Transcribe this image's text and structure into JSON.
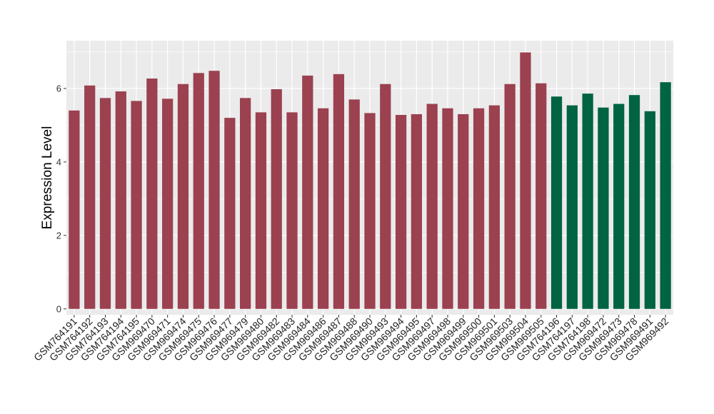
{
  "chart_data": {
    "type": "bar",
    "title": "",
    "xlabel": "",
    "ylabel": "Expression Level",
    "ylim": [
      -0.16,
      7.3
    ],
    "yticks": [
      0,
      2,
      4,
      6
    ],
    "grid": true,
    "legend": "none",
    "colors": {
      "group_a": "#9b4150",
      "group_b": "#006341",
      "panel_bg": "#ebebeb",
      "grid": "#ffffff"
    },
    "categories": [
      "GSM764191",
      "GSM764192",
      "GSM764193",
      "GSM764194",
      "GSM764195",
      "GSM969470",
      "GSM969471",
      "GSM969474",
      "GSM969475",
      "GSM969476",
      "GSM969477",
      "GSM969479",
      "GSM969480",
      "GSM969482",
      "GSM969483",
      "GSM969484",
      "GSM969486",
      "GSM969487",
      "GSM969488",
      "GSM969490",
      "GSM969493",
      "GSM969494",
      "GSM969495",
      "GSM969497",
      "GSM969498",
      "GSM969499",
      "GSM969500",
      "GSM969501",
      "GSM969503",
      "GSM969504",
      "GSM969505",
      "GSM764196",
      "GSM764197",
      "GSM764198",
      "GSM969472",
      "GSM969473",
      "GSM969478",
      "GSM969491",
      "GSM969492"
    ],
    "values": [
      5.4,
      6.08,
      5.74,
      5.92,
      5.66,
      6.27,
      5.72,
      6.12,
      6.42,
      6.48,
      5.2,
      5.74,
      5.35,
      5.98,
      5.35,
      6.35,
      5.46,
      6.39,
      5.7,
      5.33,
      6.12,
      5.28,
      5.3,
      5.58,
      5.46,
      5.3,
      5.46,
      5.54,
      6.12,
      6.98,
      6.14,
      5.78,
      5.54,
      5.86,
      5.48,
      5.58,
      5.82,
      5.38,
      6.17
    ],
    "groups": [
      "a",
      "a",
      "a",
      "a",
      "a",
      "a",
      "a",
      "a",
      "a",
      "a",
      "a",
      "a",
      "a",
      "a",
      "a",
      "a",
      "a",
      "a",
      "a",
      "a",
      "a",
      "a",
      "a",
      "a",
      "a",
      "a",
      "a",
      "a",
      "a",
      "a",
      "a",
      "b",
      "b",
      "b",
      "b",
      "b",
      "b",
      "b",
      "b"
    ]
  }
}
